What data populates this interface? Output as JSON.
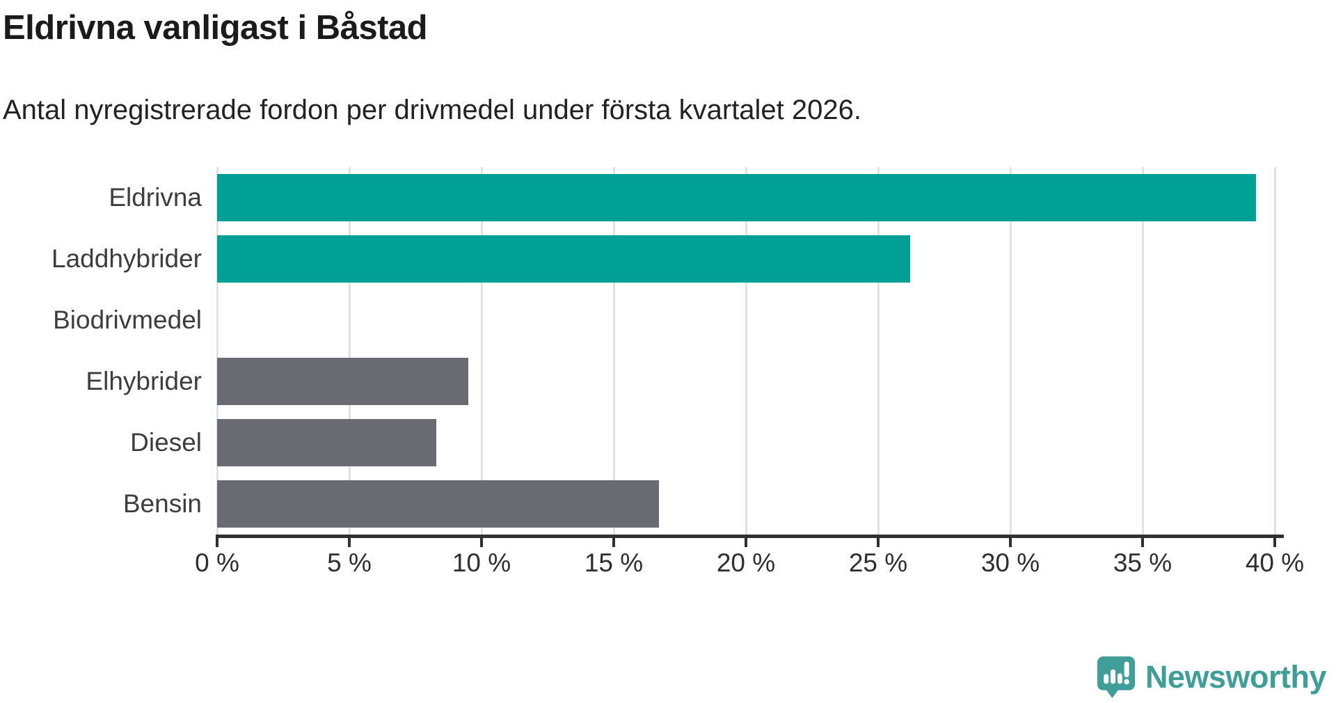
{
  "header": {
    "title": "Eldrivna vanligast i Båstad",
    "subtitle": "Antal nyregistrerade fordon per drivmedel under första kvartalet 2026."
  },
  "chart_data": {
    "type": "bar",
    "orientation": "horizontal",
    "title": "Eldrivna vanligast i Båstad",
    "subtitle": "Antal nyregistrerade fordon per drivmedel under första kvartalet 2026.",
    "categories": [
      "Eldrivna",
      "Laddhybrider",
      "Biodrivmedel",
      "Elhybrider",
      "Diesel",
      "Bensin"
    ],
    "values": [
      39.3,
      26.2,
      0,
      9.5,
      8.3,
      16.7
    ],
    "unit": "%",
    "bar_colors": [
      "#00a096",
      "#00a096",
      "#6a6a72",
      "#6a6a72",
      "#6a6a72",
      "#6a6a72"
    ],
    "highlight_color": "#00a096",
    "default_color": "#6a6a72",
    "xlim": [
      0,
      40
    ],
    "x_ticks": [
      0,
      5,
      10,
      15,
      20,
      25,
      30,
      35,
      40
    ],
    "x_tick_labels": [
      "0 %",
      "5 %",
      "10 %",
      "15 %",
      "20 %",
      "25 %",
      "30 %",
      "35 %",
      "40 %"
    ],
    "grid": "vertical",
    "grid_color": "#e2e2e2",
    "axis_color": "#303030",
    "legend": "none"
  },
  "footer": {
    "brand_name": "Newsworthy",
    "brand_color": "#3f9e98",
    "logo_icon": "speech-bubble-bar-chart-exclamation-icon"
  }
}
